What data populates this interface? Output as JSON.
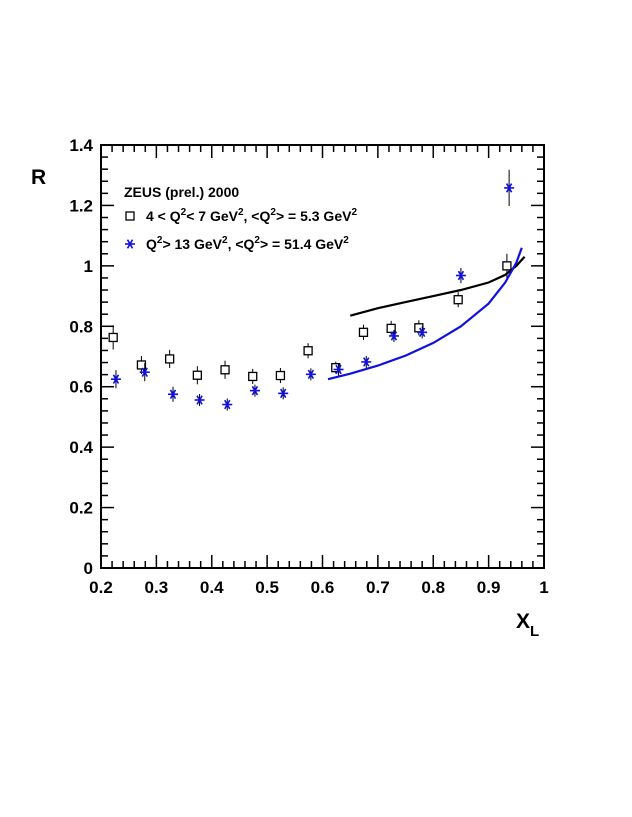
{
  "chart_data": {
    "type": "scatter",
    "title": "",
    "xlabel": "X",
    "xlabel_sub": "L",
    "ylabel": "R",
    "xlim": [
      0.2,
      1.0
    ],
    "ylim": [
      0,
      1.4
    ],
    "x_ticks": [
      "0.2",
      "0.3",
      "0.4",
      "0.5",
      "0.6",
      "0.7",
      "0.8",
      "0.9",
      "1"
    ],
    "y_ticks": [
      "0",
      "0.2",
      "0.4",
      "0.6",
      "0.8",
      "1",
      "1.2",
      "1.4"
    ],
    "legend": {
      "placement": "top-left",
      "header": "ZEUS (prel.) 2000",
      "entries": [
        {
          "marker": "open-square",
          "text_parts": [
            "4 < Q",
            "2",
            "< 7 GeV",
            "2",
            ", <Q",
            "2",
            "> = 5.3 GeV",
            "2"
          ]
        },
        {
          "marker": "asterisk",
          "text_parts": [
            "Q",
            "2",
            "> 13 GeV",
            "2",
            ", <Q",
            "2",
            "> = 51.4 GeV",
            "2"
          ]
        }
      ]
    },
    "series": [
      {
        "marker": "open-square",
        "color": "#000000",
        "points": [
          {
            "x": 0.222,
            "y": 0.763,
            "err": 0.04
          },
          {
            "x": 0.273,
            "y": 0.672,
            "err": 0.03
          },
          {
            "x": 0.324,
            "y": 0.692,
            "err": 0.03
          },
          {
            "x": 0.374,
            "y": 0.638,
            "err": 0.03
          },
          {
            "x": 0.424,
            "y": 0.656,
            "err": 0.03
          },
          {
            "x": 0.474,
            "y": 0.634,
            "err": 0.025
          },
          {
            "x": 0.524,
            "y": 0.637,
            "err": 0.025
          },
          {
            "x": 0.574,
            "y": 0.719,
            "err": 0.025
          },
          {
            "x": 0.624,
            "y": 0.663,
            "err": 0.02
          },
          {
            "x": 0.674,
            "y": 0.78,
            "err": 0.025
          },
          {
            "x": 0.724,
            "y": 0.793,
            "err": 0.025
          },
          {
            "x": 0.774,
            "y": 0.795,
            "err": 0.025
          },
          {
            "x": 0.845,
            "y": 0.888,
            "err": 0.025
          },
          {
            "x": 0.933,
            "y": 1.0,
            "err": 0.04
          }
        ]
      },
      {
        "marker": "asterisk",
        "color": "#1010e0",
        "points": [
          {
            "x": 0.227,
            "y": 0.625,
            "err": 0.03
          },
          {
            "x": 0.279,
            "y": 0.648,
            "err": 0.03
          },
          {
            "x": 0.33,
            "y": 0.575,
            "err": 0.025
          },
          {
            "x": 0.378,
            "y": 0.556,
            "err": 0.02
          },
          {
            "x": 0.428,
            "y": 0.541,
            "err": 0.02
          },
          {
            "x": 0.478,
            "y": 0.587,
            "err": 0.02
          },
          {
            "x": 0.529,
            "y": 0.578,
            "err": 0.02
          },
          {
            "x": 0.579,
            "y": 0.641,
            "err": 0.02
          },
          {
            "x": 0.629,
            "y": 0.657,
            "err": 0.02
          },
          {
            "x": 0.679,
            "y": 0.682,
            "err": 0.02
          },
          {
            "x": 0.729,
            "y": 0.768,
            "err": 0.02
          },
          {
            "x": 0.78,
            "y": 0.78,
            "err": 0.02
          },
          {
            "x": 0.85,
            "y": 0.968,
            "err": 0.025
          },
          {
            "x": 0.937,
            "y": 1.258,
            "err": 0.06
          }
        ]
      }
    ],
    "curves": [
      {
        "color": "#000000",
        "points": [
          [
            0.65,
            0.835
          ],
          [
            0.7,
            0.86
          ],
          [
            0.75,
            0.88
          ],
          [
            0.8,
            0.9
          ],
          [
            0.85,
            0.92
          ],
          [
            0.9,
            0.945
          ],
          [
            0.93,
            0.97
          ],
          [
            0.95,
            1.0
          ],
          [
            0.965,
            1.03
          ]
        ]
      },
      {
        "color": "#1010e0",
        "points": [
          [
            0.61,
            0.625
          ],
          [
            0.65,
            0.643
          ],
          [
            0.7,
            0.67
          ],
          [
            0.75,
            0.703
          ],
          [
            0.8,
            0.745
          ],
          [
            0.85,
            0.8
          ],
          [
            0.9,
            0.875
          ],
          [
            0.93,
            0.945
          ],
          [
            0.95,
            1.01
          ],
          [
            0.96,
            1.06
          ]
        ]
      }
    ]
  }
}
